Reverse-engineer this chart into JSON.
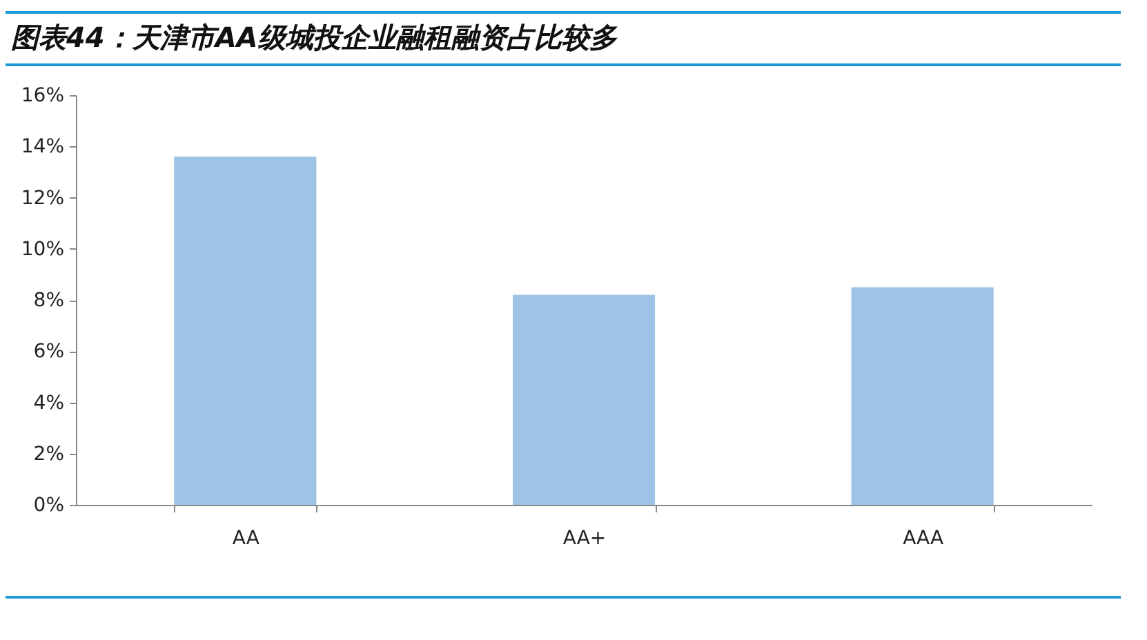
{
  "chart_data": {
    "type": "bar",
    "title": "图表44：天津市AA级城投企业融租融资占比较多",
    "categories": [
      "AA",
      "AA+",
      "AAA"
    ],
    "values": [
      13.6,
      8.2,
      8.5
    ],
    "color": "#9dc3e6",
    "ylim": [
      0,
      16
    ],
    "yticks": [
      {
        "value": 0,
        "label": "0%"
      },
      {
        "value": 2,
        "label": "2%"
      },
      {
        "value": 4,
        "label": "4%"
      },
      {
        "value": 6,
        "label": "6%"
      },
      {
        "value": 8,
        "label": "8%"
      },
      {
        "value": 10,
        "label": "10%"
      },
      {
        "value": 12,
        "label": "12%"
      },
      {
        "value": 14,
        "label": "14%"
      },
      {
        "value": 16,
        "label": "16%"
      }
    ],
    "grid": false
  }
}
